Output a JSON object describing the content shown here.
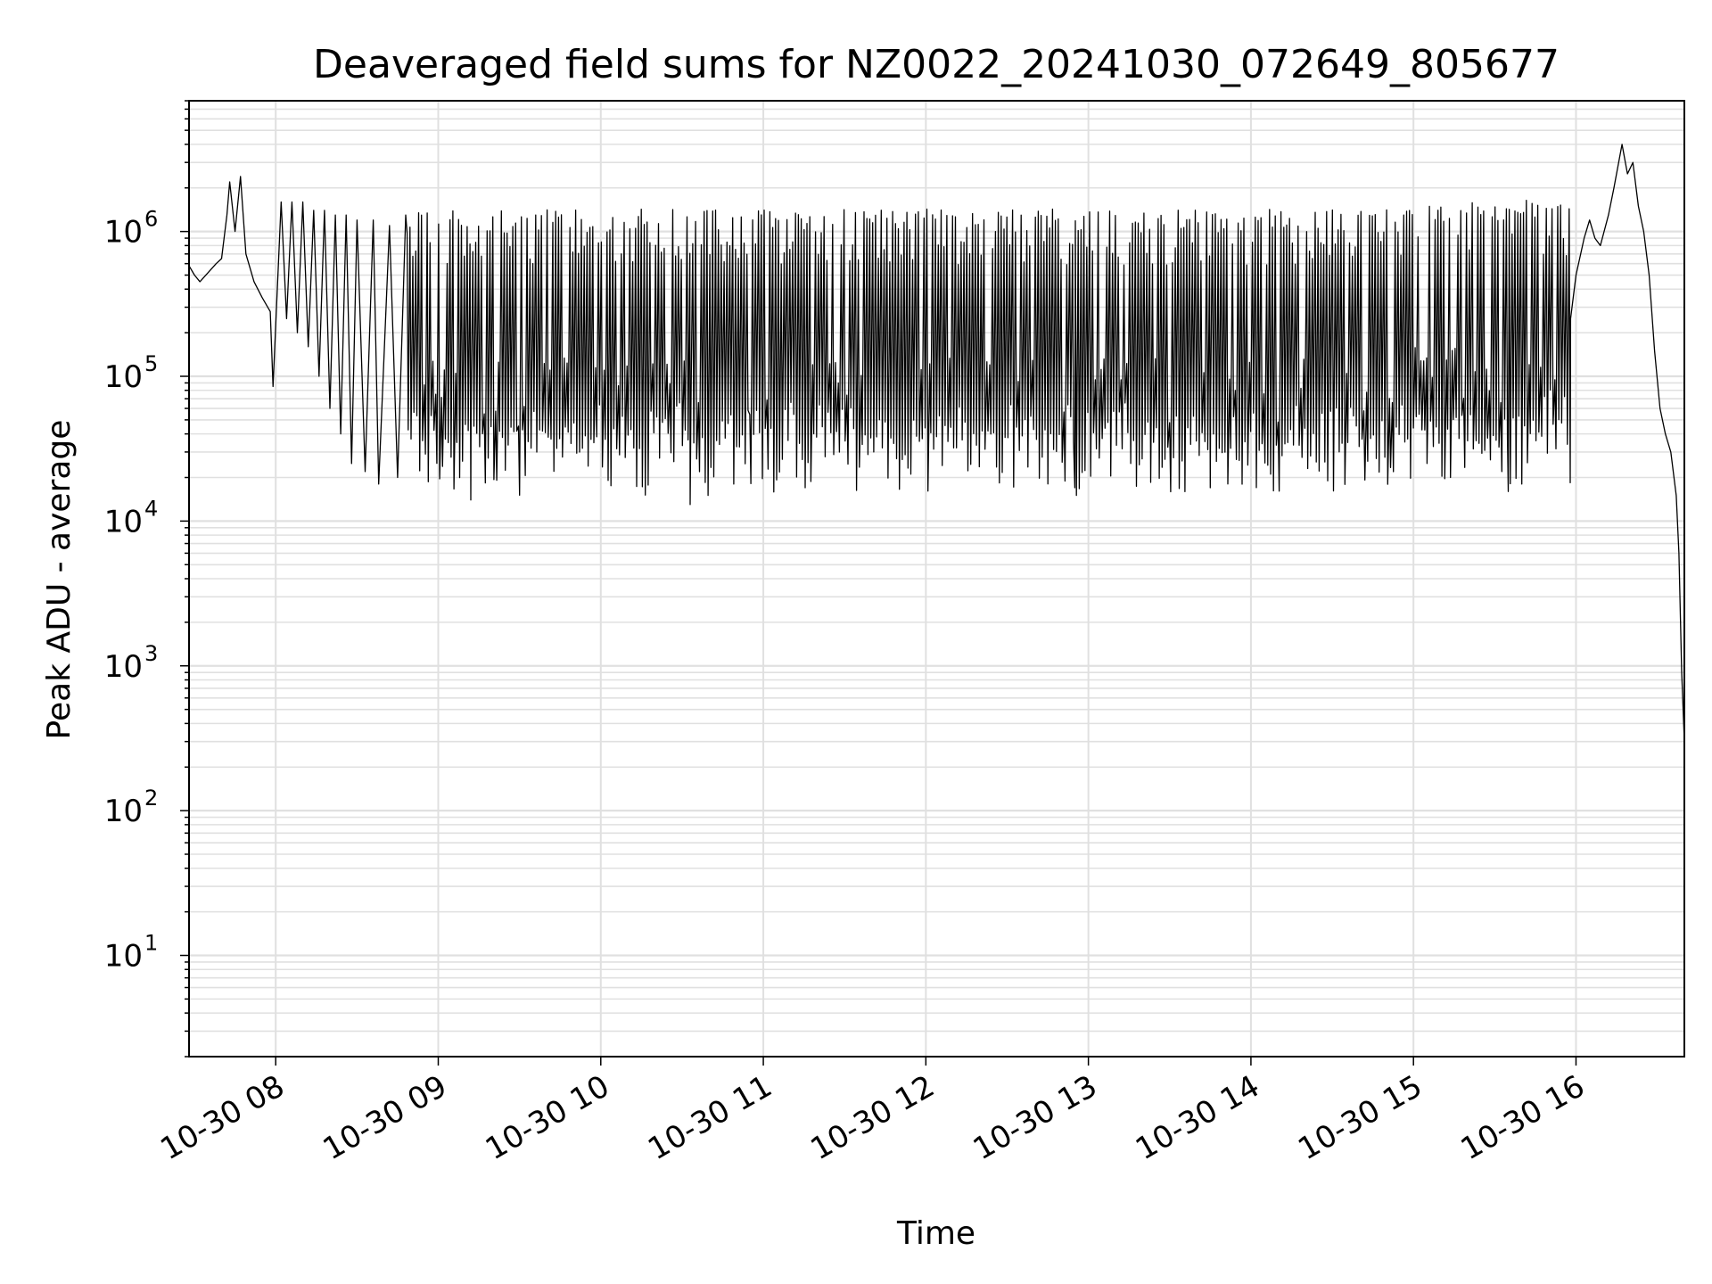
{
  "chart_data": {
    "type": "line",
    "title": "Deaveraged field sums for NZ0022_20241030_072649_805677",
    "xlabel": "Time",
    "ylabel": "Peak ADU - average",
    "yscale": "log",
    "ylim": [
      2,
      8000000
    ],
    "xlim": [
      "2024-10-30 07:28",
      "2024-10-30 16:40"
    ],
    "grid": true,
    "line_color": "#000000",
    "grid_color": "#e0e0e0",
    "x_ticks": [
      {
        "label": "10-30 08",
        "value": "2024-10-30 08:00"
      },
      {
        "label": "10-30 09",
        "value": "2024-10-30 09:00"
      },
      {
        "label": "10-30 10",
        "value": "2024-10-30 10:00"
      },
      {
        "label": "10-30 11",
        "value": "2024-10-30 11:00"
      },
      {
        "label": "10-30 12",
        "value": "2024-10-30 12:00"
      },
      {
        "label": "10-30 13",
        "value": "2024-10-30 13:00"
      },
      {
        "label": "10-30 14",
        "value": "2024-10-30 14:00"
      },
      {
        "label": "10-30 15",
        "value": "2024-10-30 15:00"
      },
      {
        "label": "10-30 16",
        "value": "2024-10-30 16:00"
      }
    ],
    "y_ticks": [
      {
        "base": "10",
        "exp": "1",
        "value": 10
      },
      {
        "base": "10",
        "exp": "2",
        "value": 100
      },
      {
        "base": "10",
        "exp": "3",
        "value": 1000
      },
      {
        "base": "10",
        "exp": "4",
        "value": 10000
      },
      {
        "base": "10",
        "exp": "5",
        "value": 100000
      },
      {
        "base": "10",
        "exp": "6",
        "value": 1000000
      }
    ],
    "series": [
      {
        "points": [
          [
            "2024-10-30 07:28",
            580000
          ],
          [
            "2024-10-30 07:30",
            500000
          ],
          [
            "2024-10-30 07:32",
            450000
          ],
          [
            "2024-10-30 07:35",
            520000
          ],
          [
            "2024-10-30 07:38",
            600000
          ],
          [
            "2024-10-30 07:40",
            650000
          ],
          [
            "2024-10-30 07:42",
            1300000
          ],
          [
            "2024-10-30 07:43",
            2200000
          ],
          [
            "2024-10-30 07:45",
            1000000
          ],
          [
            "2024-10-30 07:47",
            2400000
          ],
          [
            "2024-10-30 07:49",
            700000
          ],
          [
            "2024-10-30 07:52",
            450000
          ],
          [
            "2024-10-30 07:55",
            350000
          ],
          [
            "2024-10-30 07:58",
            280000
          ],
          [
            "2024-10-30 07:59",
            85000
          ],
          [
            "2024-10-30 08:02",
            1600000
          ],
          [
            "2024-10-30 08:04",
            250000
          ],
          [
            "2024-10-30 08:06",
            1600000
          ],
          [
            "2024-10-30 08:08",
            200000
          ],
          [
            "2024-10-30 08:10",
            1600000
          ],
          [
            "2024-10-30 08:12",
            160000
          ],
          [
            "2024-10-30 08:14",
            1400000
          ],
          [
            "2024-10-30 08:16",
            100000
          ],
          [
            "2024-10-30 08:18",
            1400000
          ],
          [
            "2024-10-30 08:20",
            60000
          ],
          [
            "2024-10-30 08:22",
            1300000
          ],
          [
            "2024-10-30 08:24",
            40000
          ],
          [
            "2024-10-30 08:26",
            1300000
          ],
          [
            "2024-10-30 08:28",
            25000
          ],
          [
            "2024-10-30 08:30",
            1200000
          ],
          [
            "2024-10-30 08:33",
            22000
          ],
          [
            "2024-10-30 08:36",
            1200000
          ],
          [
            "2024-10-30 08:38",
            18000
          ],
          [
            "2024-10-30 08:42",
            1100000
          ],
          [
            "2024-10-30 08:45",
            20000
          ],
          [
            "2024-10-30 08:48",
            1300000
          ]
        ],
        "band": [
          {
            "from": "2024-10-30 08:48",
            "to": "2024-10-30 14:58",
            "low": 25000,
            "high": 1300000,
            "min_dips": [
              [
                "2024-10-30 09:12",
                14000
              ],
              [
                "2024-10-30 10:33",
                13000
              ],
              [
                "2024-10-30 12:55",
                17000
              ],
              [
                "2024-10-30 13:45",
                17000
              ]
            ]
          },
          {
            "from": "2024-10-30 14:58",
            "to": "2024-10-30 15:58",
            "low": 30000,
            "high": 1500000,
            "min_dips": [
              [
                "2024-10-30 15:05",
                25000
              ],
              [
                "2024-10-30 15:35",
                16000
              ],
              [
                "2024-10-30 15:40",
                18000
              ]
            ]
          }
        ],
        "tail": [
          [
            "2024-10-30 15:58",
            250000
          ],
          [
            "2024-10-30 16:00",
            500000
          ],
          [
            "2024-10-30 16:03",
            900000
          ],
          [
            "2024-10-30 16:05",
            1200000
          ],
          [
            "2024-10-30 16:07",
            900000
          ],
          [
            "2024-10-30 16:09",
            800000
          ],
          [
            "2024-10-30 16:12",
            1300000
          ],
          [
            "2024-10-30 16:14",
            2000000
          ],
          [
            "2024-10-30 16:17",
            4000000
          ],
          [
            "2024-10-30 16:19",
            2500000
          ],
          [
            "2024-10-30 16:21",
            3000000
          ],
          [
            "2024-10-30 16:23",
            1500000
          ],
          [
            "2024-10-30 16:25",
            1000000
          ],
          [
            "2024-10-30 16:27",
            500000
          ],
          [
            "2024-10-30 16:29",
            150000
          ],
          [
            "2024-10-30 16:31",
            60000
          ],
          [
            "2024-10-30 16:33",
            40000
          ],
          [
            "2024-10-30 16:35",
            30000
          ],
          [
            "2024-10-30 16:37",
            15000
          ],
          [
            "2024-10-30 16:38",
            6000
          ],
          [
            "2024-10-30 16:39",
            900
          ],
          [
            "2024-10-30 16:40",
            300
          ]
        ]
      }
    ]
  }
}
